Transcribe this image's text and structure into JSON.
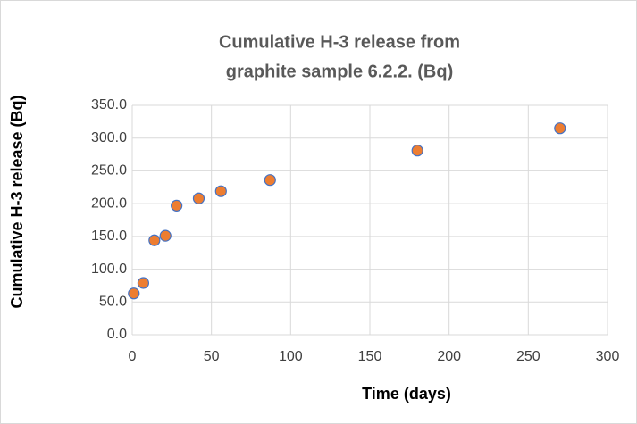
{
  "chart_data": {
    "type": "scatter",
    "title": [
      "Cumulative H-3 release from",
      "graphite sample  6.2.2. (Bq)"
    ],
    "x_label": "Time (days)",
    "y_label": "Cumulative H-3 release (Bq)",
    "series": [
      {
        "color": "#ED7D31",
        "edge_color": "#4472C4",
        "x": [
          1,
          7,
          14,
          21,
          28,
          42,
          56,
          87,
          180,
          270
        ],
        "values": [
          63,
          79,
          144,
          151,
          197,
          208,
          219,
          236,
          281,
          315
        ]
      }
    ],
    "xlim": [
      0,
      300
    ],
    "xticks": [
      0,
      50,
      100,
      150,
      200,
      250,
      300
    ],
    "ylim": [
      0,
      350
    ],
    "yticks": [
      {
        "value": 0,
        "label": "0.0"
      },
      {
        "value": 50,
        "label": "50.0"
      },
      {
        "value": 100,
        "label": "100.0"
      },
      {
        "value": 150,
        "label": "150.0"
      },
      {
        "value": 200,
        "label": "200.0"
      },
      {
        "value": 250,
        "label": "250.0"
      },
      {
        "value": 300,
        "label": "300.0"
      },
      {
        "value": 350,
        "label": "350.0"
      }
    ],
    "grid": true
  }
}
